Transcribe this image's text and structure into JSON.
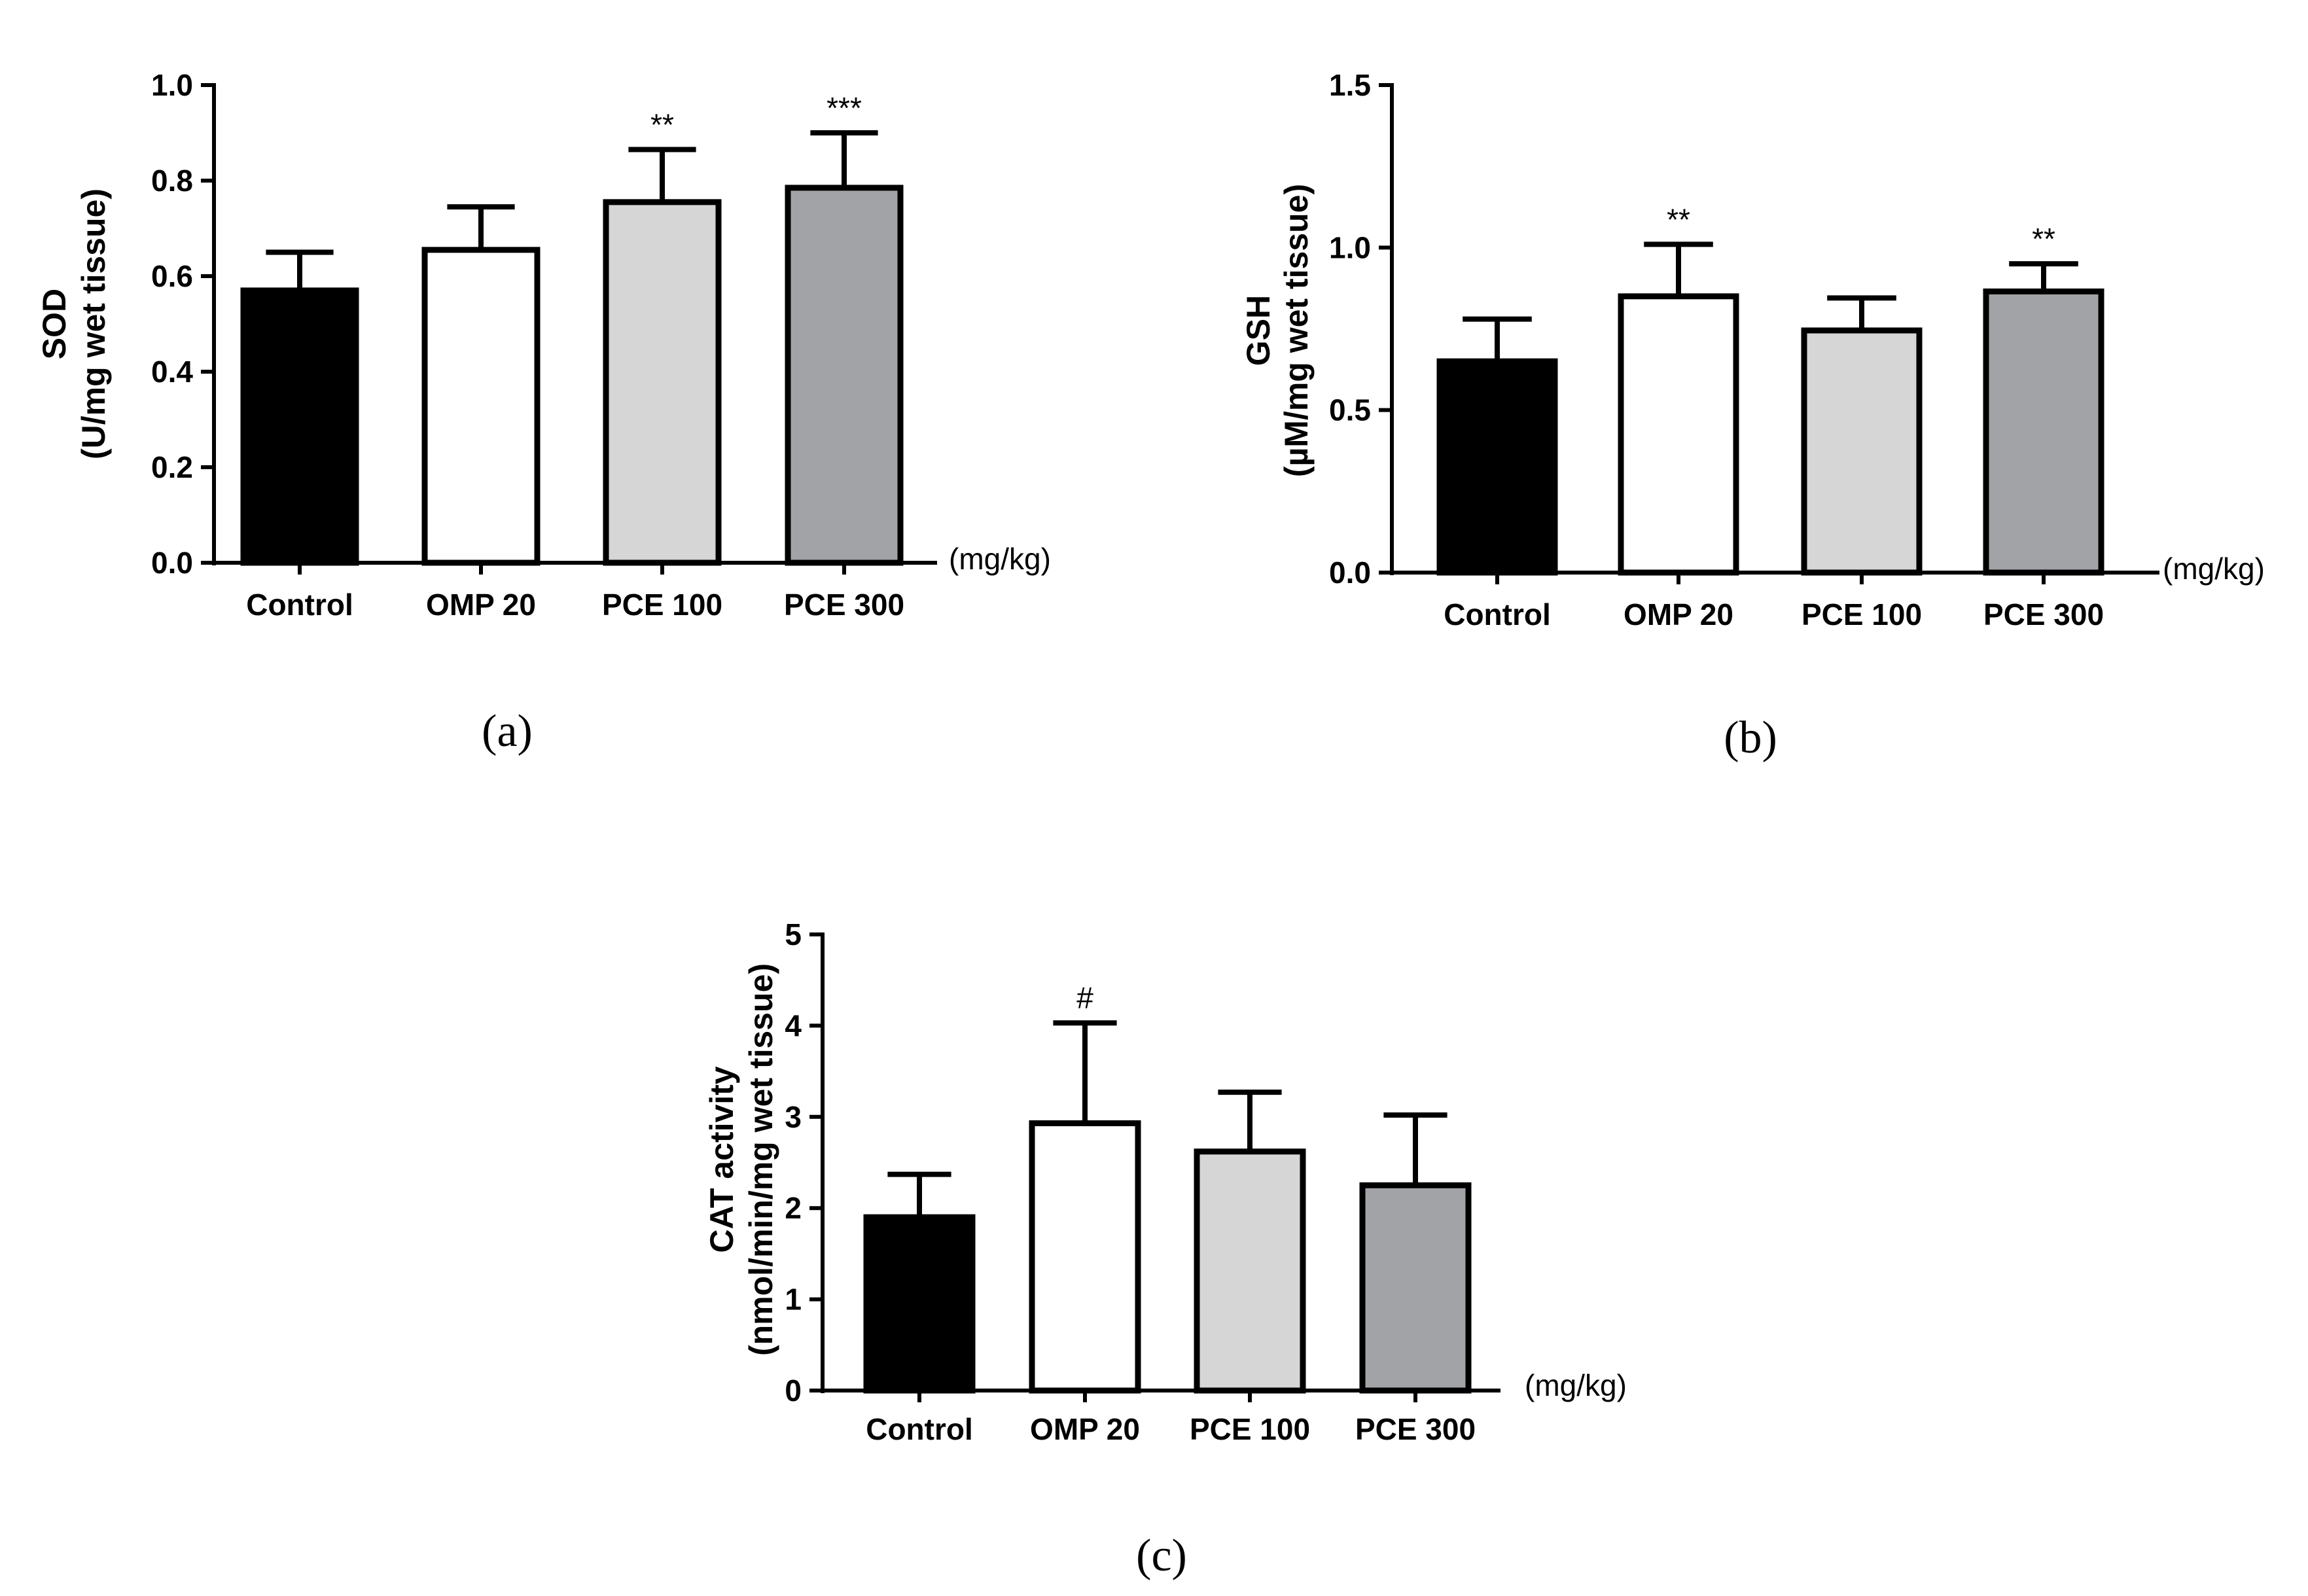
{
  "chart_data": [
    {
      "id": "a",
      "type": "bar",
      "panel_label": "(a)",
      "categories": [
        "Control",
        "OMP 20",
        "PCE 100",
        "PCE 300"
      ],
      "values": [
        0.57,
        0.655,
        0.755,
        0.785
      ],
      "errors": [
        0.08,
        0.09,
        0.11,
        0.115
      ],
      "significance": [
        "",
        "",
        "**",
        "***"
      ],
      "colors": [
        "#000000",
        "#ffffff",
        "#d6d6d6",
        "#a2a3a7"
      ],
      "ylabel": [
        "SOD",
        "(U/mg wet tissue)"
      ],
      "xunit": "(mg/kg)",
      "ylim": [
        0,
        1.0
      ],
      "yticks": [
        0.0,
        0.2,
        0.4,
        0.6,
        0.8,
        1.0
      ],
      "ytick_labels": [
        "0.0",
        "0.2",
        "0.4",
        "0.6",
        "0.8",
        "1.0"
      ]
    },
    {
      "id": "b",
      "type": "bar",
      "panel_label": "(b)",
      "categories": [
        "Control",
        "OMP 20",
        "PCE 100",
        "PCE 300"
      ],
      "values": [
        0.65,
        0.85,
        0.745,
        0.865
      ],
      "errors": [
        0.13,
        0.16,
        0.1,
        0.085
      ],
      "significance": [
        "",
        "**",
        "",
        "**"
      ],
      "colors": [
        "#000000",
        "#ffffff",
        "#d6d6d6",
        "#a2a3a7"
      ],
      "ylabel": [
        "GSH",
        "(µM/mg wet tissue)"
      ],
      "xunit": "(mg/kg)",
      "ylim": [
        0,
        1.5
      ],
      "yticks": [
        0.0,
        0.5,
        1.0,
        1.5
      ],
      "ytick_labels": [
        "0.0",
        "0.5",
        "1.0",
        "1.5"
      ]
    },
    {
      "id": "c",
      "type": "bar",
      "panel_label": "(c)",
      "categories": [
        "Control",
        "OMP 20",
        "PCE 100",
        "PCE 300"
      ],
      "values": [
        1.9,
        2.93,
        2.62,
        2.25
      ],
      "errors": [
        0.47,
        1.1,
        0.65,
        0.77
      ],
      "significance": [
        "",
        "#",
        "",
        ""
      ],
      "colors": [
        "#000000",
        "#ffffff",
        "#d6d6d6",
        "#a2a3a7"
      ],
      "ylabel": [
        "CAT activity",
        "(nmol/min/mg wet tissue)"
      ],
      "xunit": "(mg/kg)",
      "ylim": [
        0,
        5
      ],
      "yticks": [
        0,
        1,
        2,
        3,
        4,
        5
      ],
      "ytick_labels": [
        "0",
        "1",
        "2",
        "3",
        "4",
        "5"
      ]
    }
  ]
}
